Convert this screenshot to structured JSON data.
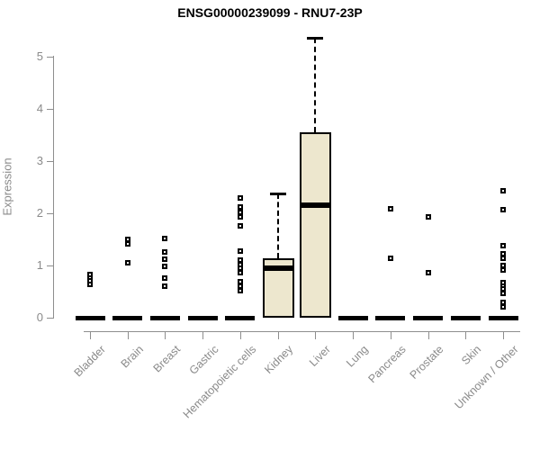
{
  "chart_data": {
    "type": "boxplot",
    "title": "ENSG00000239099 - RNU7-23P",
    "ylabel": "Expression",
    "xlabel": "",
    "ylim": [
      0,
      5
    ],
    "yticks": [
      0,
      1,
      2,
      3,
      4,
      5
    ],
    "grid": false,
    "legend": false,
    "box_fill_color": "#EDE7CE",
    "axis_color": "#8E8E8E",
    "label_color": "#8A8A8A",
    "outlier_marker": "open-square",
    "categories": [
      "Bladder",
      "Brain",
      "Breast",
      "Gastric",
      "Hematopoietic cells",
      "Kidney",
      "Liver",
      "Lung",
      "Pancreas",
      "Prostate",
      "Skin",
      "Unknown / Other"
    ],
    "series": [
      {
        "category": "Bladder",
        "q1": 0,
        "median": 0,
        "q3": 0,
        "whisker_high": 0,
        "outliers": [
          0.82,
          0.76,
          0.7,
          0.64
        ]
      },
      {
        "category": "Brain",
        "q1": 0,
        "median": 0,
        "q3": 0,
        "whisker_high": 0,
        "outliers": [
          1.5,
          1.42,
          1.05
        ]
      },
      {
        "category": "Breast",
        "q1": 0,
        "median": 0,
        "q3": 0,
        "whisker_high": 0,
        "outliers": [
          1.52,
          1.26,
          1.12,
          0.98,
          0.76,
          0.6
        ]
      },
      {
        "category": "Gastric",
        "q1": 0,
        "median": 0,
        "q3": 0,
        "whisker_high": 0,
        "outliers": []
      },
      {
        "category": "Hematopoietic cells",
        "q1": 0,
        "median": 0,
        "q3": 0,
        "whisker_high": 0,
        "outliers": [
          2.3,
          2.12,
          2.02,
          1.93,
          1.76,
          1.27,
          1.1,
          1.02,
          0.94,
          0.86,
          0.69,
          0.6,
          0.51
        ]
      },
      {
        "category": "Kidney",
        "q1": 0,
        "median": 0.94,
        "q3": 1.14,
        "whisker_high": 2.38,
        "outliers": []
      },
      {
        "category": "Liver",
        "q1": 0,
        "median": 2.15,
        "q3": 3.55,
        "whisker_high": 5.36,
        "outliers": []
      },
      {
        "category": "Lung",
        "q1": 0,
        "median": 0,
        "q3": 0,
        "whisker_high": 0,
        "outliers": []
      },
      {
        "category": "Pancreas",
        "q1": 0,
        "median": 0,
        "q3": 0,
        "whisker_high": 0,
        "outliers": [
          2.08,
          1.14
        ]
      },
      {
        "category": "Prostate",
        "q1": 0,
        "median": 0,
        "q3": 0,
        "whisker_high": 0,
        "outliers": [
          1.93,
          0.86
        ]
      },
      {
        "category": "Skin",
        "q1": 0,
        "median": 0,
        "q3": 0,
        "whisker_high": 0,
        "outliers": []
      },
      {
        "category": "Unknown / Other",
        "q1": 0,
        "median": 0,
        "q3": 0,
        "whisker_high": 0,
        "outliers": [
          2.43,
          2.07,
          1.38,
          1.23,
          1.13,
          1.0,
          0.92,
          0.68,
          0.61,
          0.55,
          0.47,
          0.3,
          0.21
        ]
      }
    ]
  }
}
